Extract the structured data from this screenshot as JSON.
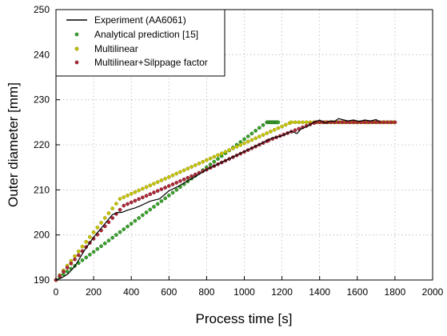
{
  "chart_data": {
    "type": "line",
    "title": "",
    "xlabel": "Process time [s]",
    "ylabel": "Outer diameter [mm]",
    "xlim": [
      0,
      2000
    ],
    "ylim": [
      190,
      250
    ],
    "x_ticks": [
      0,
      200,
      400,
      600,
      800,
      1000,
      1200,
      1400,
      1600,
      1800,
      2000
    ],
    "y_ticks": [
      190,
      200,
      210,
      220,
      230,
      240,
      250
    ],
    "x_tick_labels": [
      "0",
      "200",
      "400",
      "600",
      "800",
      "1000",
      "1200",
      "1400",
      "1600",
      "1800",
      "2000"
    ],
    "y_tick_labels": [
      "190",
      "200",
      "210",
      "220",
      "230",
      "240",
      "250"
    ],
    "grid": true,
    "grid_style": "dotted",
    "legend_position": "top-left",
    "series": [
      {
        "name": "Experiment (AA6061)",
        "style": "line",
        "color": "#000000",
        "x": [
          0,
          30,
          60,
          100,
          150,
          200,
          260,
          300,
          330,
          350,
          380,
          420,
          450,
          500,
          550,
          600,
          650,
          700,
          750,
          800,
          850,
          900,
          950,
          1000,
          1050,
          1100,
          1150,
          1200,
          1250,
          1280,
          1300,
          1330,
          1370,
          1400,
          1430,
          1460,
          1480,
          1500,
          1520,
          1550,
          1580,
          1610,
          1640,
          1670,
          1700,
          1720
        ],
        "y": [
          190,
          190.5,
          191.2,
          193,
          196.5,
          199.5,
          202.5,
          204.5,
          205,
          205,
          205.5,
          206,
          206.5,
          207.5,
          208,
          209.8,
          210.8,
          212,
          213.2,
          214.5,
          215.5,
          216.5,
          217.5,
          218.5,
          219.5,
          220.5,
          221.5,
          222,
          223,
          222.5,
          223.5,
          224,
          225,
          225.5,
          224.8,
          225.3,
          225.2,
          225.8,
          225.6,
          225.3,
          225.5,
          225.2,
          225.5,
          225.3,
          225.6,
          225.1
        ]
      },
      {
        "name": "Analytical prediction [15]",
        "style": "markers",
        "color": "#3aa22c",
        "x": [
          0,
          1120
        ],
        "y": [
          190,
          225
        ],
        "step": 20,
        "hold_until": 1180
      },
      {
        "name": "Multilinear",
        "style": "markers",
        "color": "#c7c400",
        "edge_color": "#8a8a00",
        "x": [
          0,
          340,
          1250,
          1800
        ],
        "y": [
          190,
          208,
          225,
          225
        ],
        "step": 20
      },
      {
        "name": "Multilinear+Silppage factor",
        "style": "markers",
        "color": "#b02838",
        "x": [
          0,
          360,
          800,
          1130,
          1380,
          1800
        ],
        "y": [
          190,
          206.5,
          214.5,
          221,
          225,
          225
        ],
        "step": 20
      }
    ]
  }
}
